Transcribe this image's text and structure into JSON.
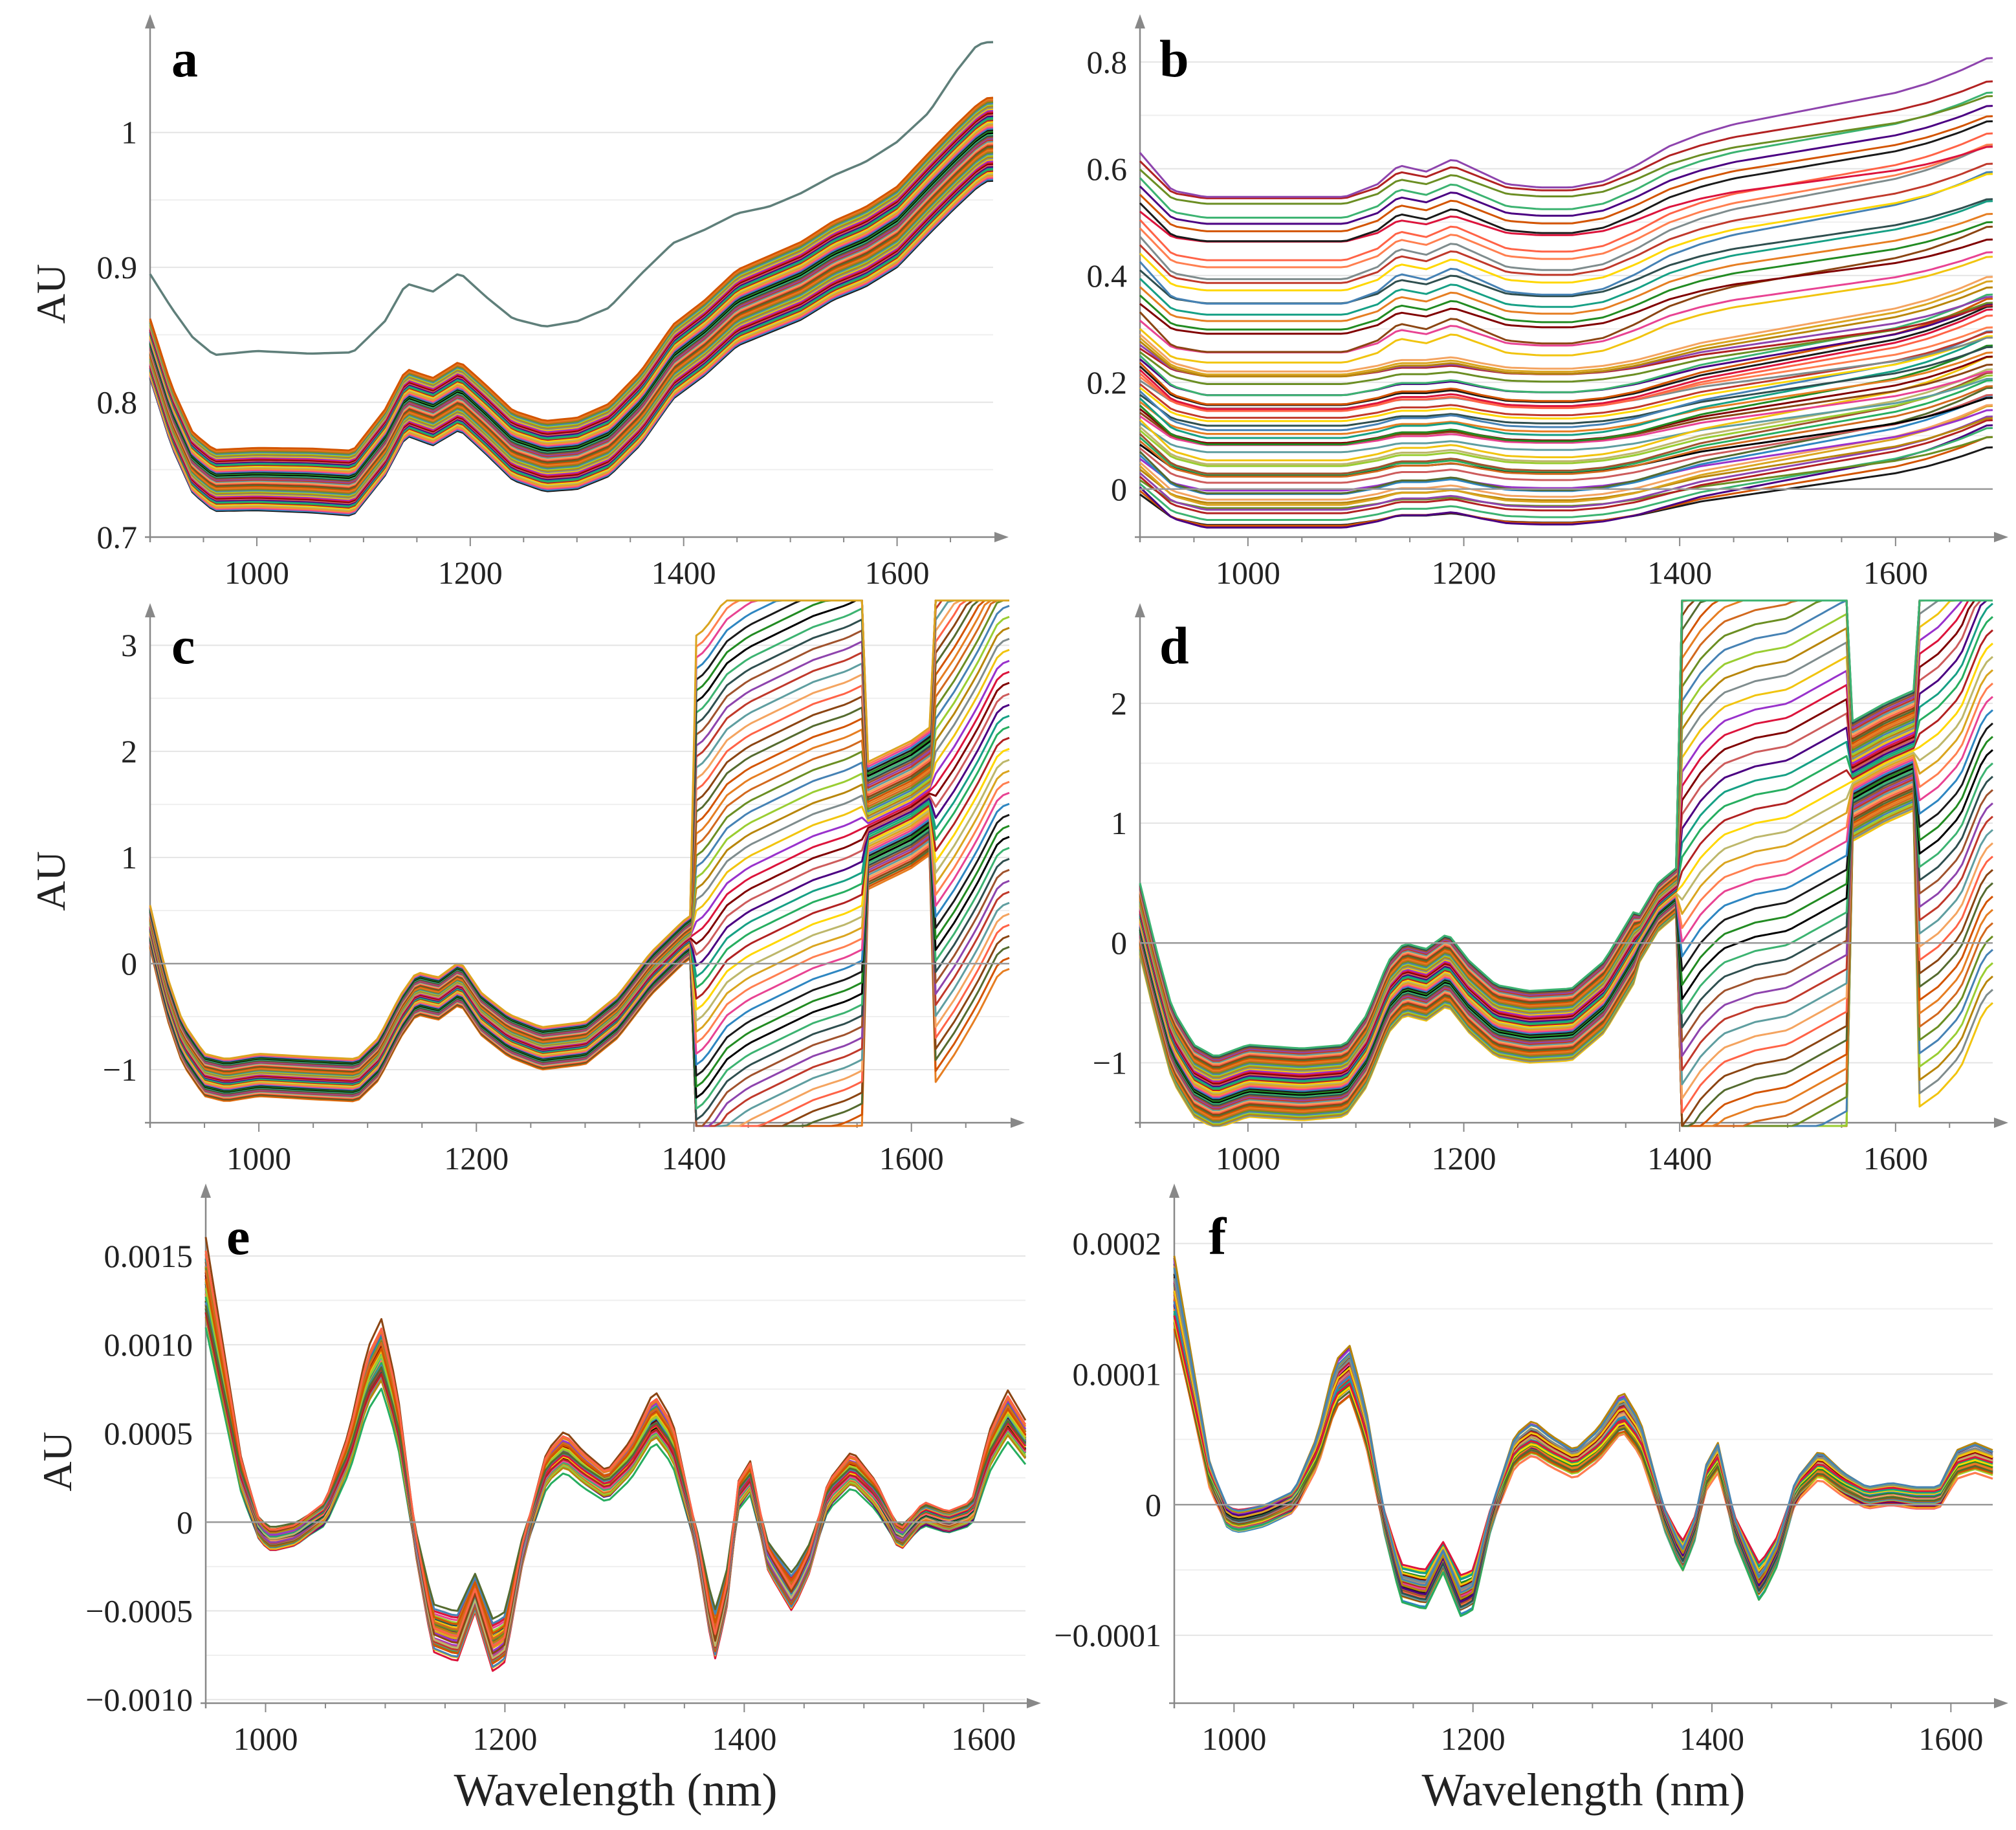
{
  "palette": [
    "#1a1a1a",
    "#c0392b",
    "#e67e22",
    "#f1c40f",
    "#27ae60",
    "#2e86c1",
    "#8e44ad",
    "#d35400",
    "#7f8c8d",
    "#16a085",
    "#e84393",
    "#a0522d",
    "#556b2f",
    "#b8860b",
    "#4b0082",
    "#ff7f50",
    "#2f4f4f",
    "#8b4513",
    "#9acd32",
    "#cd5c5c",
    "#daa520",
    "#3cb371",
    "#ff6347",
    "#4682b4",
    "#800000",
    "#bdb76b",
    "#000000",
    "#f4a460",
    "#6b8e23",
    "#dc143c",
    "#ffd700",
    "#228b22",
    "#5f9ea0",
    "#d2691e",
    "#9932cc",
    "#b22222"
  ],
  "chart_data": [
    {
      "panel": "a",
      "type": "line",
      "title": "a",
      "xlabel": "",
      "ylabel": "AU",
      "xlim": [
        900,
        1690
      ],
      "ylim": [
        0.7,
        1.08
      ],
      "xticks": [
        "1000",
        "1200",
        "1400",
        "1600"
      ],
      "yticks": [
        {
          "v": 0.7,
          "label": "0.7"
        },
        {
          "v": 0.8,
          "label": "0.8"
        },
        {
          "v": 0.9,
          "label": "0.9"
        },
        {
          "v": 1.0,
          "label": "1"
        }
      ],
      "zero_line": false,
      "highlight": {
        "name": "outlier",
        "color": "#5f7f7a",
        "x": [
          900,
          920,
          940,
          960,
          1000,
          1050,
          1090,
          1120,
          1140,
          1165,
          1190,
          1215,
          1240,
          1270,
          1300,
          1330,
          1360,
          1390,
          1420,
          1450,
          1480,
          1510,
          1540,
          1570,
          1600,
          1630,
          1655,
          1675,
          1685
        ],
        "y": [
          0.895,
          0.87,
          0.848,
          0.835,
          0.838,
          0.836,
          0.837,
          0.86,
          0.888,
          0.882,
          0.896,
          0.878,
          0.862,
          0.856,
          0.86,
          0.87,
          0.895,
          0.918,
          0.928,
          0.94,
          0.945,
          0.955,
          0.968,
          0.978,
          0.993,
          1.015,
          1.045,
          1.065,
          1.067
        ]
      },
      "mean": {
        "x": [
          900,
          920,
          940,
          960,
          1000,
          1050,
          1090,
          1120,
          1140,
          1165,
          1190,
          1215,
          1240,
          1270,
          1300,
          1330,
          1360,
          1390,
          1420,
          1450,
          1480,
          1510,
          1540,
          1570,
          1600,
          1630,
          1655,
          1675,
          1685
        ],
        "y": [
          0.84,
          0.79,
          0.755,
          0.742,
          0.743,
          0.742,
          0.74,
          0.77,
          0.8,
          0.793,
          0.805,
          0.787,
          0.768,
          0.76,
          0.762,
          0.772,
          0.796,
          0.83,
          0.848,
          0.87,
          0.88,
          0.89,
          0.905,
          0.915,
          0.93,
          0.955,
          0.975,
          0.99,
          0.995
        ]
      },
      "series_count": 60,
      "spread": 0.022,
      "spread_growth": 1.4
    },
    {
      "panel": "b",
      "type": "line",
      "title": "b",
      "xlabel": "",
      "ylabel": "",
      "xlim": [
        900,
        1690
      ],
      "ylim": [
        -0.09,
        0.87
      ],
      "xticks": [
        "1000",
        "1200",
        "1400",
        "1600"
      ],
      "yticks": [
        {
          "v": 0,
          "label": "0"
        },
        {
          "v": 0.2,
          "label": "0.2"
        },
        {
          "v": 0.4,
          "label": "0.4"
        },
        {
          "v": 0.6,
          "label": "0.6"
        },
        {
          "v": 0.8,
          "label": "0.8"
        }
      ],
      "zero_line": true,
      "groups": [
        {
          "name": "upper",
          "count": 22,
          "start": [
            0.3,
            0.63
          ],
          "offsets": {
            "x": [
              900,
              930,
              960,
              1000,
              1050,
              1090,
              1120,
              1140,
              1165,
              1190,
              1215,
              1240,
              1270,
              1300,
              1330,
              1360,
              1390,
              1420,
              1450,
              1480,
              1510,
              1540,
              1570,
              1600,
              1630,
              1660,
              1685
            ],
            "y": [
              0.0,
              -0.06,
              -0.07,
              -0.07,
              -0.07,
              -0.07,
              -0.05,
              -0.02,
              -0.03,
              -0.01,
              -0.03,
              -0.05,
              -0.055,
              -0.055,
              -0.045,
              -0.02,
              0.01,
              0.03,
              0.045,
              0.055,
              0.065,
              0.075,
              0.085,
              0.095,
              0.11,
              0.13,
              0.15
            ]
          }
        },
        {
          "name": "lower",
          "count": 46,
          "start": [
            -0.01,
            0.29
          ],
          "offsets": {
            "x": [
              900,
              930,
              960,
              1000,
              1050,
              1090,
              1120,
              1140,
              1165,
              1190,
              1215,
              1240,
              1270,
              1300,
              1330,
              1360,
              1390,
              1420,
              1450,
              1480,
              1510,
              1540,
              1570,
              1600,
              1630,
              1660,
              1685
            ],
            "y": [
              0.0,
              -0.05,
              -0.065,
              -0.065,
              -0.065,
              -0.065,
              -0.055,
              -0.045,
              -0.045,
              -0.04,
              -0.05,
              -0.058,
              -0.06,
              -0.06,
              -0.055,
              -0.045,
              -0.03,
              -0.015,
              -0.005,
              0.005,
              0.015,
              0.025,
              0.035,
              0.045,
              0.06,
              0.08,
              0.1
            ]
          }
        }
      ]
    },
    {
      "panel": "c",
      "type": "line",
      "title": "c",
      "xlabel": "",
      "ylabel": "AU",
      "xlim": [
        900,
        1690
      ],
      "ylim": [
        -1.5,
        3.3
      ],
      "xticks": [
        "1000",
        "1200",
        "1400",
        "1600"
      ],
      "yticks": [
        {
          "v": -1,
          "label": "−1"
        },
        {
          "v": 0,
          "label": "0"
        },
        {
          "v": 1,
          "label": "1"
        },
        {
          "v": 2,
          "label": "2"
        },
        {
          "v": 3,
          "label": "3"
        }
      ],
      "zero_line": true,
      "mean": {
        "x": [
          900,
          915,
          930,
          950,
          970,
          1000,
          1050,
          1090,
          1110,
          1130,
          1145,
          1165,
          1185,
          1205,
          1230,
          1260,
          1300,
          1330,
          1360,
          1390,
          1410,
          1430,
          1450,
          1480,
          1510,
          1540,
          1570,
          1600,
          1620,
          1640,
          1660,
          1680,
          1688
        ],
        "y": [
          0.35,
          -0.3,
          -0.75,
          -1.05,
          -1.1,
          -1.05,
          -1.08,
          -1.1,
          -0.9,
          -0.5,
          -0.28,
          -0.33,
          -0.18,
          -0.48,
          -0.68,
          -0.8,
          -0.75,
          -0.5,
          -0.1,
          0.2,
          0.35,
          0.65,
          0.8,
          0.95,
          1.1,
          1.2,
          1.35,
          1.5,
          1.65,
          1.95,
          2.3,
          2.7,
          2.75
        ]
      },
      "series_count": 55,
      "spread": 0.04,
      "spread_shape": [
        [
          900,
          1360,
          0.02
        ],
        [
          1400,
          1560,
          0.28
        ],
        [
          1560,
          1620,
          0.06
        ],
        [
          1620,
          1690,
          0.28
        ]
      ]
    },
    {
      "panel": "d",
      "type": "line",
      "title": "d",
      "xlabel": "",
      "ylabel": "",
      "xlim": [
        900,
        1690
      ],
      "ylim": [
        -1.5,
        2.75
      ],
      "xticks": [
        "1000",
        "1200",
        "1400",
        "1600"
      ],
      "yticks": [
        {
          "v": -1,
          "label": "−1"
        },
        {
          "v": 0,
          "label": "0"
        },
        {
          "v": 1,
          "label": "1"
        },
        {
          "v": 2,
          "label": "2"
        }
      ],
      "zero_line": true,
      "mean": {
        "x": [
          900,
          915,
          930,
          950,
          970,
          1000,
          1050,
          1090,
          1110,
          1130,
          1145,
          1165,
          1185,
          1205,
          1230,
          1260,
          1300,
          1330,
          1360,
          1380,
          1400,
          1420,
          1440,
          1470,
          1500,
          1530,
          1560,
          1590,
          1620,
          1640,
          1660,
          1680,
          1688
        ],
        "y": [
          0.2,
          -0.35,
          -0.85,
          -1.15,
          -1.25,
          -1.15,
          -1.18,
          -1.15,
          -0.9,
          -0.45,
          -0.3,
          -0.35,
          -0.22,
          -0.45,
          -0.65,
          -0.7,
          -0.68,
          -0.45,
          0.0,
          0.3,
          0.45,
          0.72,
          0.9,
          1.0,
          1.05,
          1.2,
          1.35,
          1.5,
          1.62,
          1.75,
          1.95,
          2.4,
          2.5
        ]
      },
      "series_count": 55,
      "spread": 0.04,
      "spread_shape": [
        [
          900,
          1360,
          0.03
        ],
        [
          1400,
          1560,
          0.32
        ],
        [
          1560,
          1620,
          0.05
        ],
        [
          1620,
          1690,
          0.3
        ]
      ]
    },
    {
      "panel": "e",
      "type": "line",
      "title": "e",
      "xlabel": "Wavelength (nm)",
      "ylabel": "AU",
      "xlim": [
        950,
        1635
      ],
      "ylim": [
        -0.00102,
        0.00185
      ],
      "xticks": [
        "1000",
        "1200",
        "1400",
        "1600"
      ],
      "yticks": [
        {
          "v": -0.001,
          "label": "−0.0010"
        },
        {
          "v": -0.0005,
          "label": "−0.0005"
        },
        {
          "v": 0,
          "label": "0"
        },
        {
          "v": 0.0005,
          "label": "0.0005"
        },
        {
          "v": 0.001,
          "label": "0.0010"
        },
        {
          "v": 0.0015,
          "label": "0.0015"
        }
      ],
      "zero_line": true,
      "mean": {
        "x": [
          950,
          965,
          980,
          995,
          1005,
          1025,
          1050,
          1070,
          1085,
          1097,
          1110,
          1125,
          1140,
          1160,
          1175,
          1190,
          1200,
          1215,
          1235,
          1250,
          1265,
          1285,
          1305,
          1325,
          1340,
          1360,
          1375,
          1385,
          1395,
          1405,
          1420,
          1440,
          1455,
          1470,
          1490,
          1510,
          1530,
          1550,
          1570,
          1590,
          1605,
          1620,
          1635
        ],
        "y": [
          0.00135,
          0.0008,
          0.00025,
          -5e-05,
          -0.0001,
          -7e-05,
          5e-05,
          0.0004,
          0.0008,
          0.00095,
          0.0006,
          -0.0001,
          -0.0006,
          -0.00065,
          -0.0004,
          -0.0007,
          -0.00065,
          -0.00015,
          0.0003,
          0.0004,
          0.0003,
          0.0002,
          0.00035,
          0.0006,
          0.00045,
          -0.0001,
          -0.00065,
          -0.0004,
          0.00015,
          0.00025,
          -0.0002,
          -0.0004,
          -0.0002,
          0.00015,
          0.0003,
          0.00015,
          -0.0001,
          5e-05,
          0,
          5e-05,
          0.0004,
          0.0006,
          0.00045
        ]
      },
      "series_count": 55,
      "spread": 6e-05
    },
    {
      "panel": "f",
      "type": "line",
      "title": "f",
      "xlabel": "Wavelength (nm)",
      "ylabel": "",
      "xlim": [
        950,
        1635
      ],
      "ylim": [
        -0.000152,
        0.000238
      ],
      "xticks": [
        "1000",
        "1200",
        "1400",
        "1600"
      ],
      "yticks": [
        {
          "v": -0.0001,
          "label": "−0.0001"
        },
        {
          "v": 0,
          "label": "0"
        },
        {
          "v": 0.0001,
          "label": "0.0001"
        },
        {
          "v": 0.0002,
          "label": "0.0002"
        }
      ],
      "zero_line": true,
      "mean": {
        "x": [
          950,
          965,
          980,
          995,
          1005,
          1025,
          1050,
          1070,
          1085,
          1097,
          1110,
          1125,
          1140,
          1160,
          1175,
          1190,
          1200,
          1215,
          1235,
          1250,
          1265,
          1285,
          1305,
          1325,
          1340,
          1360,
          1375,
          1385,
          1395,
          1405,
          1420,
          1440,
          1455,
          1470,
          1490,
          1510,
          1530,
          1550,
          1570,
          1590,
          1605,
          1620,
          1635
        ],
        "y": [
          0.00016,
          9e-05,
          2e-05,
          -1e-05,
          -1.2e-05,
          -8e-06,
          2e-06,
          4e-05,
          9e-05,
          0.0001,
          6e-05,
          -1e-05,
          -6e-05,
          -6.5e-05,
          -4e-05,
          -7e-05,
          -6.5e-05,
          -1e-05,
          4e-05,
          5e-05,
          4e-05,
          3e-05,
          4.5e-05,
          7e-05,
          5e-05,
          -1e-05,
          -4e-05,
          -2e-05,
          2e-05,
          3.5e-05,
          -2e-05,
          -6e-05,
          -3.5e-05,
          1e-05,
          3e-05,
          1.5e-05,
          5e-06,
          8e-06,
          5e-06,
          5e-06,
          3e-05,
          3.5e-05,
          3e-05
        ]
      },
      "series_count": 55,
      "spread": 8e-06
    }
  ]
}
